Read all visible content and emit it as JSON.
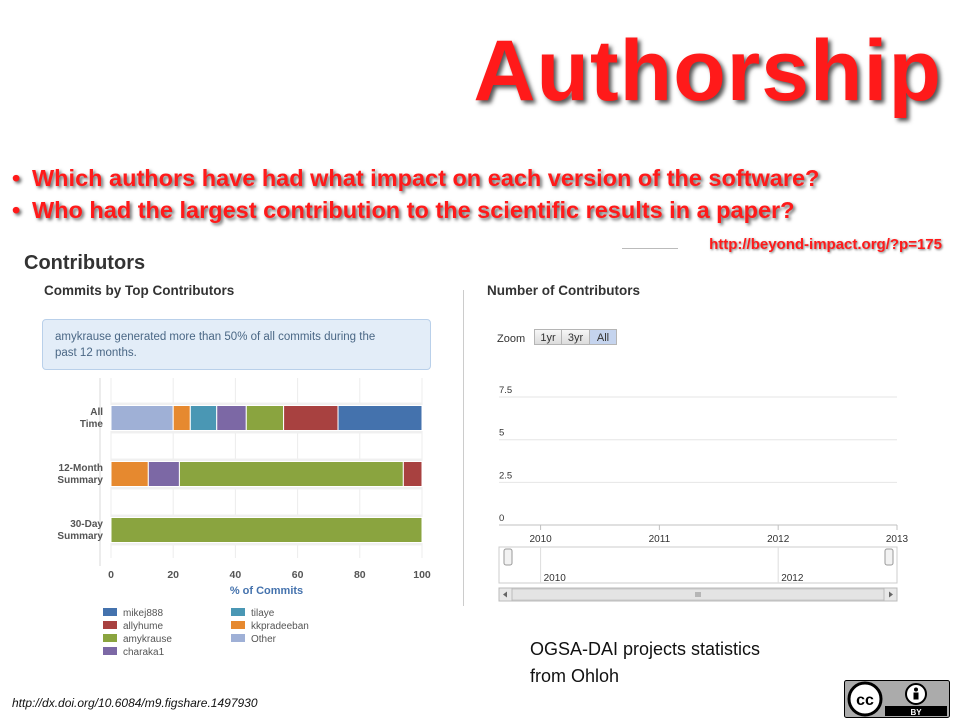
{
  "slide": {
    "title": "Authorship",
    "bullets": [
      "Which authors have had what impact on each version of the software?",
      "Who had the largest contribution to the scientific results in a paper?"
    ],
    "source_url": "http://beyond-impact.org/?p=175",
    "credit_line1": "OGSA-DAI projects statistics",
    "credit_line2": "from Ohloh",
    "doi": "http://dx.doi.org/10.6084/m9.figshare.1497930",
    "license_badge": "BY",
    "colors": {
      "accent_red": "#ff1a1a"
    }
  },
  "contributors": {
    "heading": "Contributors",
    "chart_heading": "Commits by Top Contributors",
    "info_line1": "amykrause generated more than 50% of all commits during the",
    "info_line2": "past 12 months."
  },
  "number_chart": {
    "heading": "Number of Contributors",
    "zoom_label": "Zoom",
    "zoom_buttons": [
      "1yr",
      "3yr",
      "All"
    ],
    "zoom_selected": "All"
  },
  "chart_data": [
    {
      "type": "bar",
      "orientation": "horizontal",
      "stacked": true,
      "title": "Commits by Top Contributors",
      "xlabel": "% of Commits",
      "xlim": [
        0,
        100
      ],
      "xticks": [
        0,
        20,
        40,
        60,
        80,
        100
      ],
      "grid": true,
      "legend": "bottom",
      "categories": [
        [
          "All",
          "Time"
        ],
        [
          "12-Month",
          "Summary"
        ],
        [
          "30-Day",
          "Summary"
        ]
      ],
      "series": [
        {
          "name": "Other",
          "color": "#9fb0d6",
          "values": [
            20,
            0,
            0
          ]
        },
        {
          "name": "kkpradeeban",
          "color": "#e6892f",
          "values": [
            5.5,
            12,
            0
          ]
        },
        {
          "name": "tilaye",
          "color": "#4a97b4",
          "values": [
            8.5,
            0,
            0
          ]
        },
        {
          "name": "charaka1",
          "color": "#7c68a5",
          "values": [
            9.5,
            10,
            0
          ]
        },
        {
          "name": "amykrause",
          "color": "#8aa43f",
          "values": [
            12,
            72,
            100
          ]
        },
        {
          "name": "allyhume",
          "color": "#a84140",
          "values": [
            17.5,
            6,
            0
          ]
        },
        {
          "name": "mikej888",
          "color": "#4472ad",
          "values": [
            27,
            0,
            0
          ]
        }
      ],
      "legend_order": [
        "mikej888",
        "allyhume",
        "amykrause",
        "charaka1",
        "tilaye",
        "kkpradeeban",
        "Other"
      ]
    },
    {
      "type": "line",
      "title": "Number of Contributors",
      "x_axis": "year",
      "xlim": [
        2009.65,
        2013.0
      ],
      "xticks": [
        "2010",
        "2011",
        "2012",
        "2013"
      ],
      "ylim": [
        0,
        8.5
      ],
      "yticks": [
        "0",
        "2.5",
        "5",
        "7.5"
      ],
      "line_color": "#4a7ab5",
      "series": [],
      "navigator": {
        "type": "area",
        "xticks": [
          "2010",
          "2012"
        ],
        "fill_color": "#b4c7e4"
      }
    }
  ]
}
